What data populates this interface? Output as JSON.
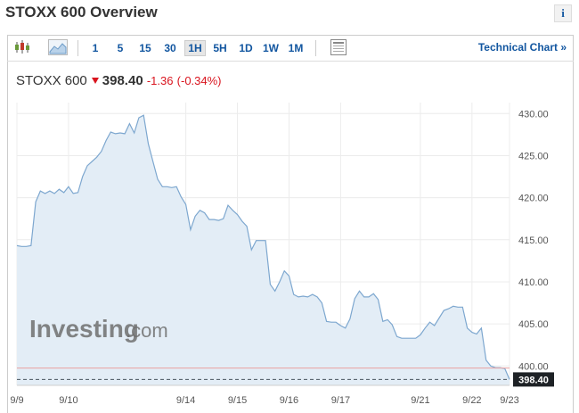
{
  "header": {
    "title": "STOXX 600 Overview",
    "info_label": "i"
  },
  "toolbar": {
    "timeframes": [
      "1",
      "5",
      "15",
      "30",
      "1H",
      "5H",
      "1D",
      "1W",
      "1M"
    ],
    "active_timeframe": "1H",
    "technical_chart_label": "Technical Chart »"
  },
  "quote": {
    "name": "STOXX 600",
    "price": "398.40",
    "change": "-1.36",
    "change_pct": "(-0.34%)",
    "direction": "down"
  },
  "watermark": {
    "brand": "Investing",
    "suffix": ".com"
  },
  "colors": {
    "line": "#7da7cf",
    "fill": "#e3edf6",
    "down": "#d9141e",
    "link": "#1256a0",
    "prev_close": "#e8a0a0"
  },
  "chart_data": {
    "type": "area",
    "title": "",
    "xlabel": "",
    "ylabel": "",
    "ylim": [
      397.7,
      431.3
    ],
    "y_ticks": [
      "430.00",
      "425.00",
      "420.00",
      "415.00",
      "410.00",
      "405.00",
      "400.00"
    ],
    "x_labels": [
      "9/9",
      "9/10",
      "9/14",
      "9/15",
      "9/16",
      "9/17",
      "9/21",
      "9/22",
      "9/23"
    ],
    "last_price_label": "398.40",
    "previous_close": 399.76,
    "values": [
      414.3,
      414.2,
      414.2,
      414.3,
      419.5,
      420.8,
      420.5,
      420.8,
      420.5,
      421.0,
      420.6,
      421.3,
      420.5,
      420.6,
      422.5,
      423.8,
      424.3,
      424.8,
      425.5,
      426.8,
      427.8,
      427.6,
      427.7,
      427.6,
      428.8,
      427.7,
      429.5,
      429.8,
      426.4,
      424.3,
      422.2,
      421.3,
      421.3,
      421.2,
      421.3,
      420.1,
      419.2,
      416.2,
      417.8,
      418.5,
      418.2,
      417.4,
      417.4,
      417.3,
      417.5,
      419.1,
      418.5,
      418.0,
      417.2,
      416.6,
      413.8,
      414.9,
      414.9,
      414.9,
      409.7,
      408.9,
      410.0,
      411.3,
      410.7,
      408.5,
      408.2,
      408.3,
      408.2,
      408.5,
      408.2,
      407.5,
      405.3,
      405.2,
      405.2,
      404.8,
      404.5,
      405.6,
      408.0,
      408.9,
      408.2,
      408.2,
      408.6,
      407.9,
      405.3,
      405.5,
      404.9,
      403.5,
      403.3,
      403.3,
      403.3,
      403.3,
      403.7,
      404.5,
      405.2,
      404.8,
      405.7,
      406.6,
      406.8,
      407.1,
      407.0,
      407.0,
      404.5,
      404.0,
      403.8,
      404.5,
      400.7,
      400.0,
      399.8,
      399.8,
      399.7,
      398.4
    ]
  }
}
